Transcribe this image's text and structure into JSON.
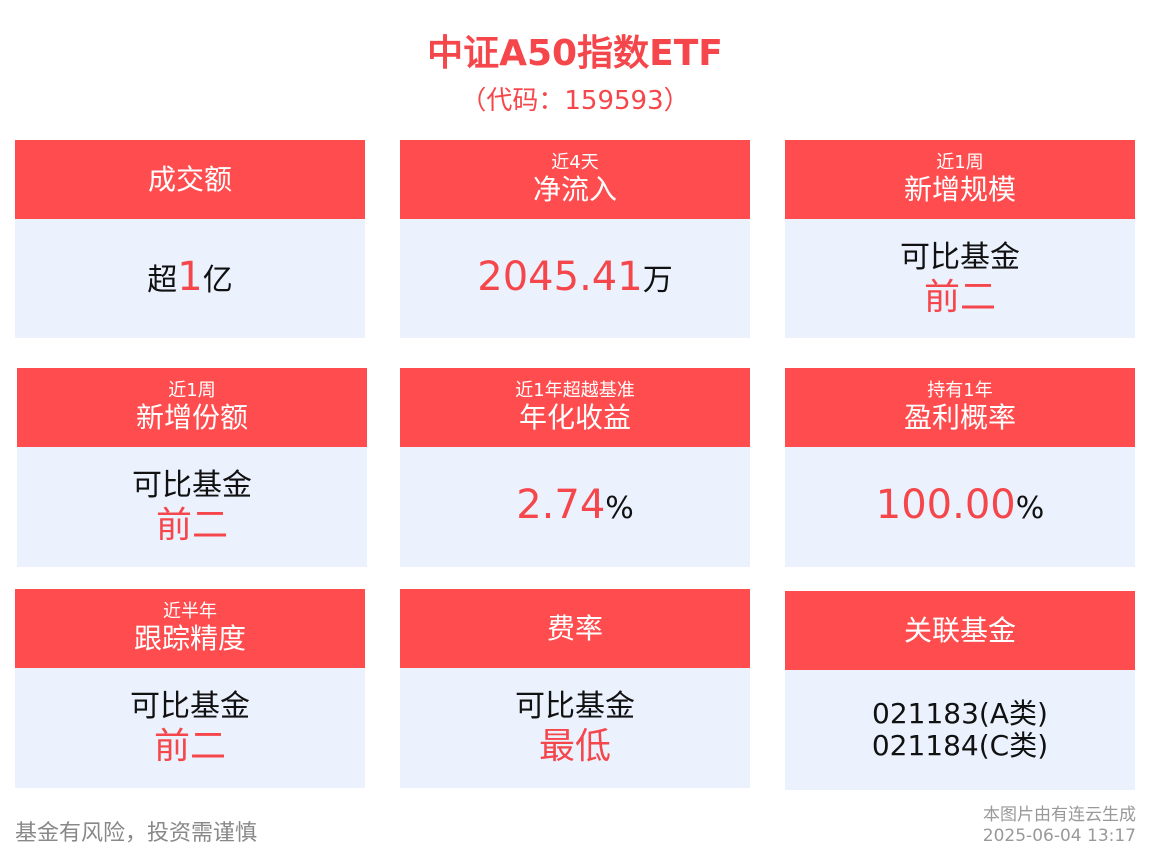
{
  "header": {
    "title": "中证A50指数ETF",
    "code": "（代码：159593）"
  },
  "colors": {
    "accent": "#ff4d4f",
    "panel": "#ebf2fe"
  },
  "cards": [
    {
      "sub": "",
      "label": "成交额",
      "prefix": "超",
      "value": "1",
      "suffix": "亿"
    },
    {
      "sub": "近4天",
      "label": "净流入",
      "value": "2045.41",
      "suffix": "万"
    },
    {
      "sub": "近1周",
      "label": "新增规模",
      "line1": "可比基金",
      "line2": "前二"
    },
    {
      "sub": "近1周",
      "label": "新增份额",
      "line1": "可比基金",
      "line2": "前二"
    },
    {
      "sub": "近1年超越基准",
      "label": "年化收益",
      "value": "2.74",
      "suffix": "%"
    },
    {
      "sub": "持有1年",
      "label": "盈利概率",
      "value": "100.00",
      "suffix": "%"
    },
    {
      "sub": "近半年",
      "label": "跟踪精度",
      "line1": "可比基金",
      "line2": "前二"
    },
    {
      "sub": "",
      "label": "费率",
      "line1": "可比基金",
      "line2": "最低"
    },
    {
      "sub": "",
      "label": "关联基金",
      "line1": "021183(A类)",
      "line2": "021184(C类)"
    }
  ],
  "footer": {
    "disclaimer": "基金有风险，投资需谨慎",
    "generated_by": "本图片由有连云生成",
    "timestamp": "2025-06-04 13:17"
  }
}
